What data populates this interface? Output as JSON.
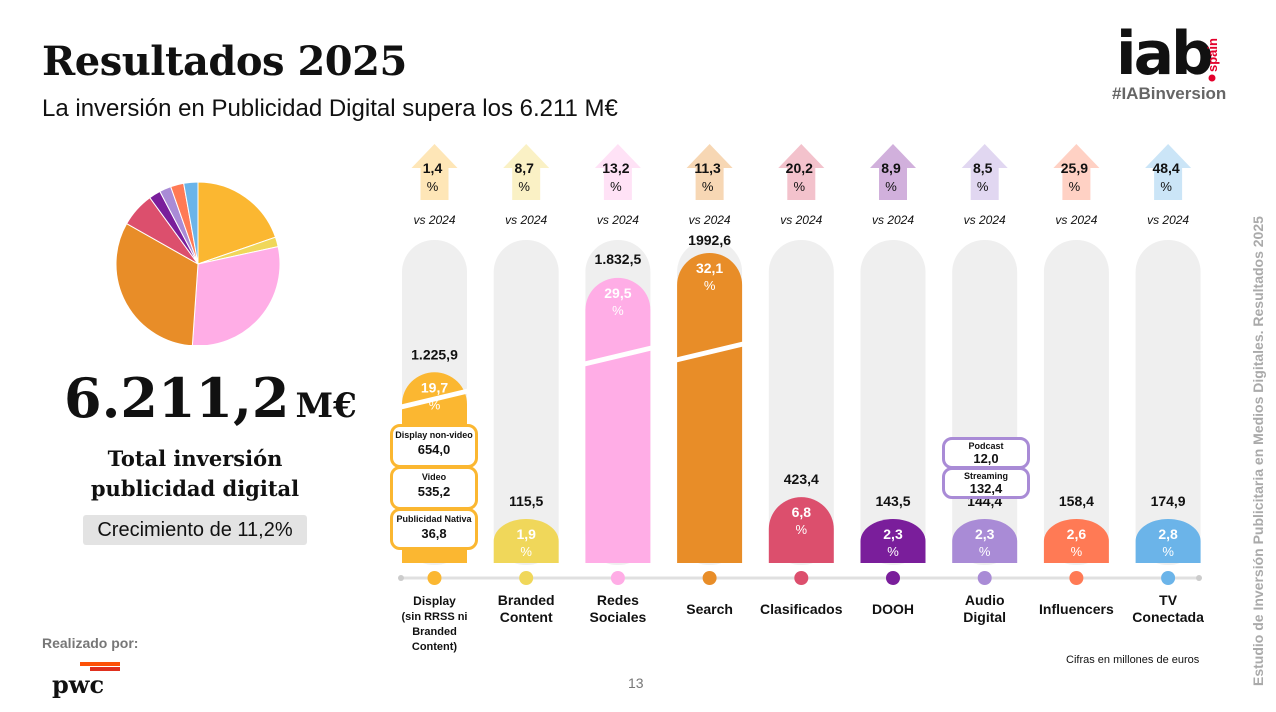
{
  "header": {
    "title": "Resultados 2025",
    "subtitle": "La inversión en Publicidad Digital supera los 6.211 M€"
  },
  "logo": {
    "text": "iab",
    "country": ".spain",
    "hashtag": "#IABinversion"
  },
  "summary": {
    "total_value": "6.211,2",
    "total_unit": "M€",
    "total_label_line1": "Total inversión",
    "total_label_line2": "publicidad digital",
    "growth": "Crecimiento de 11,2%"
  },
  "footer": {
    "realizado_por": "Realizado por:",
    "pwc": "pwc",
    "page_number": "13",
    "note": "Cifras en millones de euros",
    "sidebar": "Estudio de Inversión Publicitaria en Medios Digitales. Resultados 2025"
  },
  "colors": {
    "display": "#FBB731",
    "branded": "#F0D75A",
    "redes": "#FFADE6",
    "search": "#E88D28",
    "clasificados": "#DC4F6D",
    "dooh": "#7A1E9B",
    "audio": "#A98BD6",
    "influencers": "#FF7A55",
    "tv": "#6BB4E9",
    "track": "#EFEFEF"
  },
  "chart_data": {
    "type": "bar",
    "categories": [
      "Display (sin RRSS ni Branded Content)",
      "Branded Content",
      "Redes Sociales",
      "Search",
      "Clasificados",
      "DOOH",
      "Audio Digital",
      "Influencers",
      "TV Conectada"
    ],
    "label_lines": [
      [
        "Display",
        "(sin RRSS ni",
        "Branded",
        "Content)"
      ],
      [
        "Branded",
        "Content"
      ],
      [
        "Redes",
        "Sociales"
      ],
      [
        "Search"
      ],
      [
        "Clasificados"
      ],
      [
        "DOOH"
      ],
      [
        "Audio",
        "Digital"
      ],
      [
        "Influencers"
      ],
      [
        "TV",
        "Conectada"
      ]
    ],
    "values": [
      1225.9,
      115.5,
      1832.5,
      1992.6,
      423.4,
      143.5,
      144.4,
      158.4,
      174.9
    ],
    "value_labels": [
      "1.225,9",
      "115,5",
      "1.832,5",
      "1992,6",
      "423,4",
      "143,5",
      "144,4",
      "158,4",
      "174,9"
    ],
    "share_labels": [
      "19,7",
      "1,9",
      "29,5",
      "32,1",
      "6,8",
      "2,3",
      "2,3",
      "2,6",
      "2,8"
    ],
    "shares": [
      19.7,
      1.9,
      29.5,
      32.1,
      6.8,
      2.3,
      2.3,
      2.6,
      2.8
    ],
    "growth_labels": [
      "1,4",
      "8,7",
      "13,2",
      "11,3",
      "20,2",
      "8,9",
      "8,5",
      "25,9",
      "48,4"
    ],
    "growth": [
      1.4,
      8.7,
      13.2,
      11.3,
      20.2,
      8.9,
      8.5,
      25.9,
      48.4
    ],
    "pct_symbol": "%",
    "vs_label": "vs 2024",
    "display_breakdown": [
      {
        "name": "Display non-video",
        "value": "654,0"
      },
      {
        "name": "Video",
        "value": "535,2"
      },
      {
        "name": "Publicidad Nativa",
        "value": "36,8"
      }
    ],
    "audio_breakdown": [
      {
        "name": "Podcast",
        "value": "12,0"
      },
      {
        "name": "Streaming",
        "value": "132,4"
      }
    ],
    "pie": {
      "shares": [
        19.7,
        1.9,
        29.5,
        32.1,
        6.8,
        2.3,
        2.3,
        2.6,
        2.8
      ],
      "note": "same segments as bar chart"
    }
  }
}
